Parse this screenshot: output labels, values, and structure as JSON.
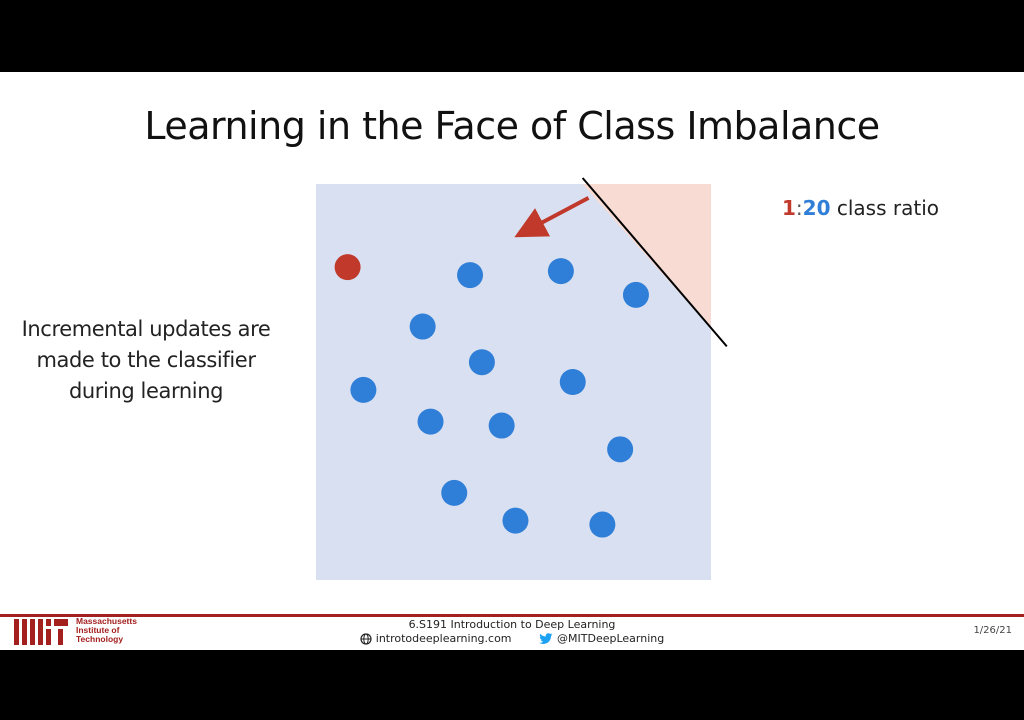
{
  "slide": {
    "title": "Learning in the Face of Class Imbalance",
    "side_text": "Incremental updates are made to the classifier during learning",
    "ratio": {
      "minority": "1",
      "colon": ":",
      "majority": "20",
      "suffix": " class ratio"
    }
  },
  "colors": {
    "background_region": "#d8e0f1",
    "minority_region": "#f8dbd3",
    "minority_point": "#c0392b",
    "majority_point": "#2f7ed8",
    "arrow": "#c0392b",
    "mit_red": "#a3201f"
  },
  "chart_data": {
    "type": "scatter",
    "xlim": [
      0,
      100
    ],
    "ylim": [
      0,
      100
    ],
    "decision_boundary": {
      "from": [
        67.5,
        100
      ],
      "to": [
        104,
        59
      ]
    },
    "update_arrow": {
      "from": [
        69,
        96.5
      ],
      "to": [
        52,
        87.5
      ]
    },
    "series": [
      {
        "class": "minority",
        "points": [
          [
            8,
            79
          ]
        ]
      },
      {
        "class": "majority",
        "points": [
          [
            39,
            77
          ],
          [
            62,
            78
          ],
          [
            81,
            72
          ],
          [
            27,
            64
          ],
          [
            42,
            55
          ],
          [
            12,
            48
          ],
          [
            65,
            50
          ],
          [
            29,
            40
          ],
          [
            47,
            39
          ],
          [
            77,
            33
          ],
          [
            35,
            22
          ],
          [
            50.5,
            15
          ],
          [
            72.5,
            14
          ]
        ]
      }
    ]
  },
  "footer": {
    "institution": [
      "Massachusetts",
      "Institute of",
      "Technology"
    ],
    "course": "6.S191 Introduction to Deep Learning",
    "website": "introtodeeplearning.com",
    "twitter": "@MITDeepLearning",
    "date": "1/26/21",
    "icons": [
      "globe-icon",
      "twitter-bird-icon"
    ]
  }
}
